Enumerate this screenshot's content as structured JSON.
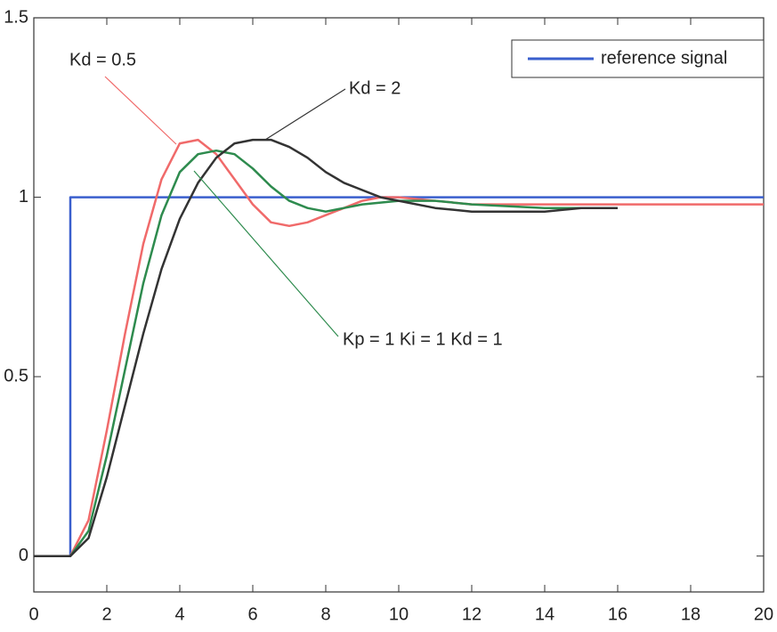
{
  "chart_data": {
    "type": "line",
    "xlim": [
      0,
      20
    ],
    "ylim": [
      -0.1,
      1.5
    ],
    "xticks": [
      0,
      2,
      4,
      6,
      8,
      10,
      12,
      14,
      16,
      18,
      20
    ],
    "yticks": [
      0,
      0.5,
      1,
      1.5
    ],
    "grid": false,
    "legend": "upper right",
    "series": [
      {
        "name": "reference signal",
        "color": "#3a5fcd",
        "x": [
          0,
          1,
          1,
          20
        ],
        "values": [
          0,
          0,
          1,
          1
        ]
      },
      {
        "color": "#f06a6a",
        "x": [
          0,
          1,
          1.5,
          2,
          2.5,
          3,
          3.5,
          4,
          4.5,
          5,
          5.5,
          6,
          6.5,
          7,
          7.5,
          8,
          8.5,
          9,
          9.5,
          10,
          11,
          12,
          13,
          14,
          16,
          18,
          20
        ],
        "values": [
          0,
          0,
          0.1,
          0.35,
          0.62,
          0.87,
          1.05,
          1.15,
          1.16,
          1.12,
          1.05,
          0.98,
          0.93,
          0.92,
          0.93,
          0.95,
          0.97,
          0.99,
          1.0,
          1.0,
          0.99,
          0.98,
          0.98,
          0.98,
          0.98,
          0.98,
          0.98
        ]
      },
      {
        "color": "#2e8b4e",
        "x": [
          0,
          1,
          1.5,
          2,
          2.5,
          3,
          3.5,
          4,
          4.5,
          5,
          5.5,
          6,
          6.5,
          7,
          7.5,
          8,
          8.5,
          9,
          10,
          11,
          12,
          14,
          16
        ],
        "values": [
          0,
          0,
          0.07,
          0.28,
          0.52,
          0.76,
          0.95,
          1.07,
          1.12,
          1.13,
          1.12,
          1.08,
          1.03,
          0.99,
          0.97,
          0.96,
          0.97,
          0.98,
          0.99,
          0.99,
          0.98,
          0.97,
          0.97
        ]
      },
      {
        "color": "#333333",
        "x": [
          0,
          1,
          1.5,
          2,
          2.5,
          3,
          3.5,
          4,
          4.5,
          5,
          5.5,
          6,
          6.5,
          7,
          7.5,
          8,
          8.5,
          9,
          9.5,
          10,
          11,
          12,
          13,
          14,
          15,
          16
        ],
        "values": [
          0,
          0,
          0.05,
          0.22,
          0.42,
          0.62,
          0.8,
          0.94,
          1.04,
          1.11,
          1.15,
          1.16,
          1.16,
          1.14,
          1.11,
          1.07,
          1.04,
          1.02,
          1.0,
          0.99,
          0.97,
          0.96,
          0.96,
          0.96,
          0.97,
          0.97
        ]
      }
    ],
    "annotations": [
      "Kd = 0.5",
      "Kd = 2",
      "Kp = 1  Ki = 1  Kd = 1"
    ]
  }
}
